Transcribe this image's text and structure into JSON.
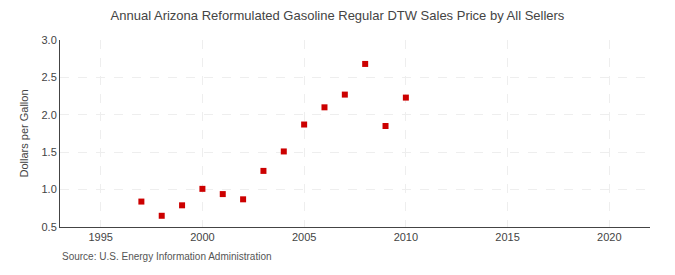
{
  "chart_data": {
    "type": "scatter",
    "title": "Annual Arizona Reformulated Gasoline Regular DTW Sales Price by All Sellers",
    "ylabel": "Dollars per Gallon",
    "source": "Source: U.S. Energy Information Administration",
    "x": [
      1997,
      1998,
      1999,
      2000,
      2001,
      2002,
      2003,
      2004,
      2005,
      2006,
      2007,
      2008,
      2009,
      2010
    ],
    "values": [
      0.84,
      0.65,
      0.79,
      1.01,
      0.94,
      0.87,
      1.25,
      1.51,
      1.87,
      2.1,
      2.27,
      2.68,
      1.85,
      2.23
    ],
    "color": "#cc0000",
    "marker": "square",
    "xlim": [
      1993,
      2022
    ],
    "ylim": [
      0.5,
      3.0
    ],
    "xticks": [
      1995,
      2000,
      2005,
      2010,
      2015,
      2020
    ],
    "yticks": [
      0.5,
      {
        "value": 1,
        "label": "1.0"
      },
      1.5,
      {
        "value": 2,
        "label": "2.0"
      },
      2.5,
      {
        "value": 3,
        "label": "3.0"
      }
    ],
    "grid": true
  }
}
